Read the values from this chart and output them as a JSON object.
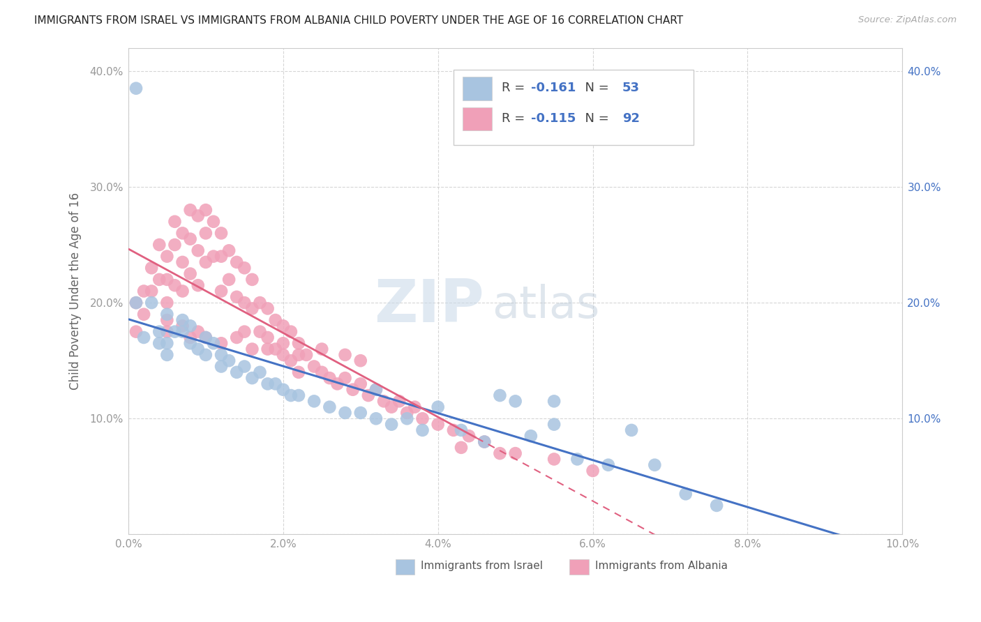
{
  "title": "IMMIGRANTS FROM ISRAEL VS IMMIGRANTS FROM ALBANIA CHILD POVERTY UNDER THE AGE OF 16 CORRELATION CHART",
  "source": "Source: ZipAtlas.com",
  "ylabel": "Child Poverty Under the Age of 16",
  "xlim": [
    0.0,
    0.1
  ],
  "ylim": [
    0.0,
    0.42
  ],
  "x_ticks": [
    0.0,
    0.02,
    0.04,
    0.06,
    0.08,
    0.1
  ],
  "x_tick_labels": [
    "0.0%",
    "2.0%",
    "4.0%",
    "6.0%",
    "8.0%",
    "10.0%"
  ],
  "y_ticks": [
    0.0,
    0.1,
    0.2,
    0.3,
    0.4
  ],
  "y_tick_labels": [
    "",
    "10.0%",
    "20.0%",
    "30.0%",
    "40.0%"
  ],
  "israel_color": "#a8c4e0",
  "albania_color": "#f0a0b8",
  "israel_R": -0.161,
  "israel_N": 53,
  "albania_R": -0.115,
  "albania_N": 92,
  "israel_line_color": "#4472c4",
  "albania_line_color": "#e06080",
  "watermark_zip": "ZIP",
  "watermark_atlas": "atlas",
  "israel_x": [
    0.001,
    0.001,
    0.002,
    0.003,
    0.004,
    0.004,
    0.005,
    0.005,
    0.005,
    0.006,
    0.007,
    0.007,
    0.008,
    0.008,
    0.009,
    0.01,
    0.01,
    0.011,
    0.012,
    0.012,
    0.013,
    0.014,
    0.015,
    0.016,
    0.017,
    0.018,
    0.019,
    0.02,
    0.021,
    0.022,
    0.024,
    0.026,
    0.028,
    0.03,
    0.032,
    0.034,
    0.036,
    0.038,
    0.04,
    0.043,
    0.046,
    0.05,
    0.052,
    0.055,
    0.058,
    0.062,
    0.065,
    0.068,
    0.072,
    0.076,
    0.055,
    0.032,
    0.048
  ],
  "israel_y": [
    0.385,
    0.2,
    0.17,
    0.2,
    0.175,
    0.165,
    0.165,
    0.155,
    0.19,
    0.175,
    0.185,
    0.175,
    0.165,
    0.18,
    0.16,
    0.17,
    0.155,
    0.165,
    0.155,
    0.145,
    0.15,
    0.14,
    0.145,
    0.135,
    0.14,
    0.13,
    0.13,
    0.125,
    0.12,
    0.12,
    0.115,
    0.11,
    0.105,
    0.105,
    0.1,
    0.095,
    0.1,
    0.09,
    0.11,
    0.09,
    0.08,
    0.115,
    0.085,
    0.095,
    0.065,
    0.06,
    0.09,
    0.06,
    0.035,
    0.025,
    0.115,
    0.125,
    0.12
  ],
  "albania_x": [
    0.001,
    0.001,
    0.002,
    0.002,
    0.003,
    0.003,
    0.004,
    0.004,
    0.005,
    0.005,
    0.005,
    0.006,
    0.006,
    0.006,
    0.007,
    0.007,
    0.007,
    0.008,
    0.008,
    0.008,
    0.009,
    0.009,
    0.009,
    0.01,
    0.01,
    0.01,
    0.011,
    0.011,
    0.012,
    0.012,
    0.012,
    0.013,
    0.013,
    0.014,
    0.014,
    0.015,
    0.015,
    0.016,
    0.016,
    0.017,
    0.017,
    0.018,
    0.018,
    0.019,
    0.019,
    0.02,
    0.02,
    0.021,
    0.021,
    0.022,
    0.022,
    0.023,
    0.024,
    0.025,
    0.026,
    0.027,
    0.028,
    0.029,
    0.03,
    0.031,
    0.032,
    0.033,
    0.034,
    0.035,
    0.036,
    0.037,
    0.038,
    0.04,
    0.042,
    0.044,
    0.046,
    0.05,
    0.03,
    0.025,
    0.02,
    0.015,
    0.01,
    0.008,
    0.005,
    0.018,
    0.012,
    0.022,
    0.016,
    0.028,
    0.007,
    0.014,
    0.009,
    0.005,
    0.055,
    0.043,
    0.048,
    0.06
  ],
  "albania_y": [
    0.2,
    0.175,
    0.21,
    0.19,
    0.23,
    0.21,
    0.25,
    0.22,
    0.24,
    0.22,
    0.2,
    0.27,
    0.25,
    0.215,
    0.26,
    0.235,
    0.21,
    0.28,
    0.255,
    0.225,
    0.275,
    0.245,
    0.215,
    0.28,
    0.26,
    0.235,
    0.27,
    0.24,
    0.26,
    0.24,
    0.21,
    0.245,
    0.22,
    0.235,
    0.205,
    0.23,
    0.2,
    0.22,
    0.195,
    0.2,
    0.175,
    0.195,
    0.17,
    0.185,
    0.16,
    0.18,
    0.155,
    0.175,
    0.15,
    0.165,
    0.14,
    0.155,
    0.145,
    0.14,
    0.135,
    0.13,
    0.135,
    0.125,
    0.13,
    0.12,
    0.125,
    0.115,
    0.11,
    0.115,
    0.105,
    0.11,
    0.1,
    0.095,
    0.09,
    0.085,
    0.08,
    0.07,
    0.15,
    0.16,
    0.165,
    0.175,
    0.17,
    0.17,
    0.175,
    0.16,
    0.165,
    0.155,
    0.16,
    0.155,
    0.18,
    0.17,
    0.175,
    0.185,
    0.065,
    0.075,
    0.07,
    0.055
  ]
}
